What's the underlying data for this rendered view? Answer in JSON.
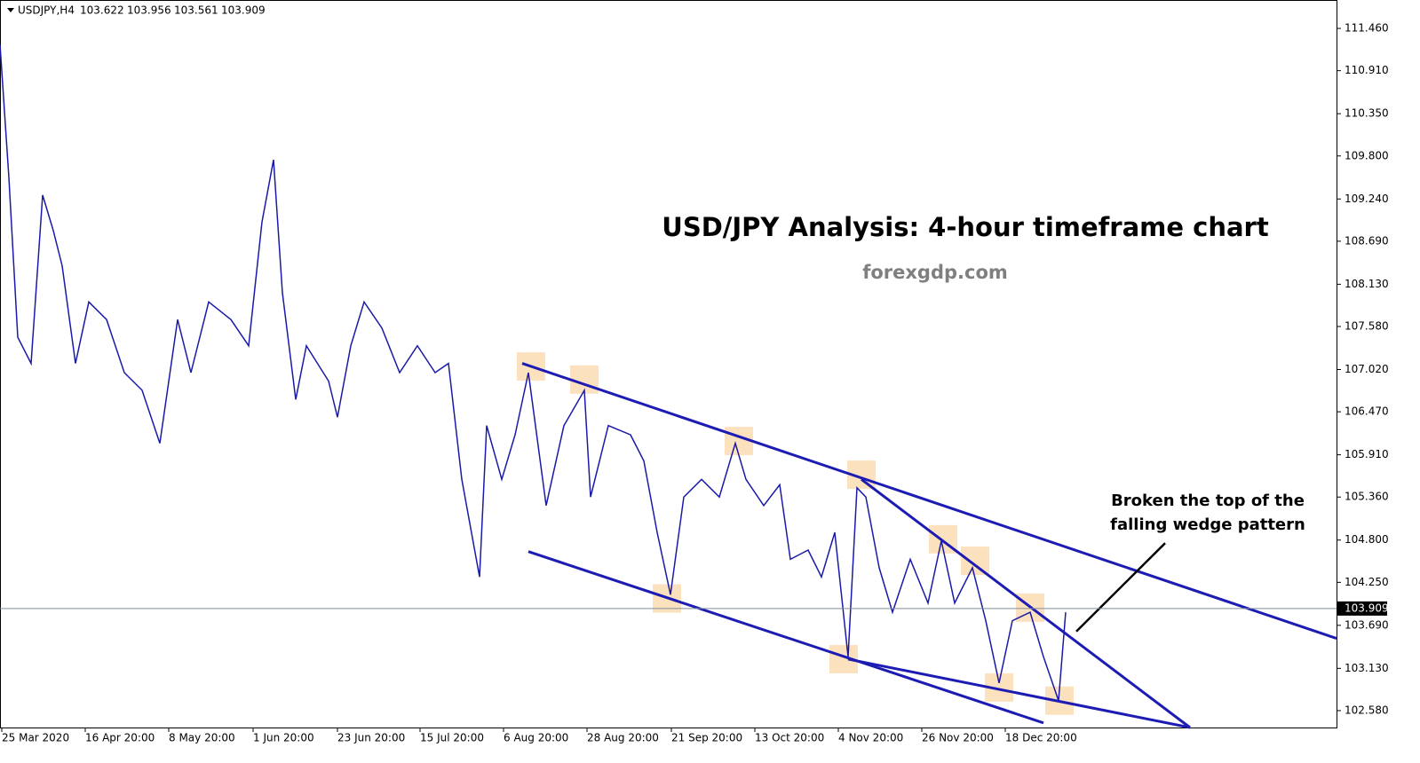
{
  "chart_data": {
    "type": "line",
    "symbol": "USDJPY,H4",
    "ohlc": [
      103.622,
      103.956,
      103.561,
      103.909
    ],
    "title": "USD/JPY Analysis: 4-hour timeframe chart",
    "subtitle": "forexgdp.com",
    "annotation": [
      "Broken the top of the",
      "falling wedge pattern"
    ],
    "xlim": [
      0,
      1505
    ],
    "ylim": [
      102.36,
      111.83
    ],
    "xticks": [
      {
        "value": 2,
        "label": "25 Mar 2020"
      },
      {
        "value": 96,
        "label": "16 Apr 20:00"
      },
      {
        "value": 190,
        "label": "8 May 20:00"
      },
      {
        "value": 285,
        "label": "1 Jun 20:00"
      },
      {
        "value": 380,
        "label": "23 Jun 20:00"
      },
      {
        "value": 473,
        "label": "15 Jul 20:00"
      },
      {
        "value": 567,
        "label": "6 Aug 20:00"
      },
      {
        "value": 661,
        "label": "28 Aug 20:00"
      },
      {
        "value": 756,
        "label": "21 Sep 20:00"
      },
      {
        "value": 850,
        "label": "13 Oct 20:00"
      },
      {
        "value": 944,
        "label": "4 Nov 20:00"
      },
      {
        "value": 1038,
        "label": "26 Nov 20:00"
      },
      {
        "value": 1132,
        "label": "18 Dec 20:00"
      }
    ],
    "yticks": [
      {
        "value": 111.46,
        "label": "111.460"
      },
      {
        "value": 110.91,
        "label": "110.910"
      },
      {
        "value": 110.35,
        "label": "110.350"
      },
      {
        "value": 109.8,
        "label": "109.800"
      },
      {
        "value": 109.24,
        "label": "109.240"
      },
      {
        "value": 108.69,
        "label": "108.690"
      },
      {
        "value": 108.13,
        "label": "108.130"
      },
      {
        "value": 107.58,
        "label": "107.580"
      },
      {
        "value": 107.02,
        "label": "107.020"
      },
      {
        "value": 106.47,
        "label": "106.470"
      },
      {
        "value": 105.91,
        "label": "105.910"
      },
      {
        "value": 105.36,
        "label": "105.360"
      },
      {
        "value": 104.8,
        "label": "104.800"
      },
      {
        "value": 104.25,
        "label": "104.250"
      },
      {
        "value": 103.69,
        "label": "103.690"
      },
      {
        "value": 103.13,
        "label": "103.130"
      },
      {
        "value": 102.58,
        "label": "102.580"
      }
    ],
    "series": [
      {
        "name": "USDJPY",
        "color": "#1a1aa8",
        "x": [
          0,
          10,
          20,
          35,
          48,
          60,
          70,
          85,
          100,
          120,
          140,
          160,
          180,
          200,
          215,
          235,
          260,
          280,
          295,
          308,
          318,
          333,
          345,
          370,
          380,
          395,
          410,
          430,
          450,
          470,
          490,
          505,
          520,
          540,
          548,
          565,
          580,
          595,
          615,
          635,
          658,
          665,
          685,
          710,
          725,
          740,
          755,
          770,
          790,
          810,
          828,
          840,
          860,
          878,
          890,
          910,
          925,
          940,
          955,
          965,
          975,
          990,
          1005,
          1025,
          1045,
          1060,
          1075,
          1095,
          1110,
          1125,
          1140,
          1160,
          1175,
          1192,
          1200
        ],
        "values": [
          111.25,
          109.52,
          107.44,
          107.1,
          109.29,
          108.83,
          108.37,
          107.1,
          107.9,
          107.67,
          106.98,
          106.75,
          106.06,
          107.67,
          106.98,
          107.9,
          107.67,
          107.33,
          108.94,
          109.75,
          108.02,
          106.63,
          107.33,
          106.87,
          106.4,
          107.33,
          107.9,
          107.56,
          106.98,
          107.33,
          106.98,
          107.1,
          105.59,
          104.32,
          106.29,
          105.59,
          106.17,
          106.98,
          105.25,
          106.29,
          106.75,
          105.36,
          106.29,
          106.17,
          105.83,
          104.9,
          104.09,
          105.36,
          105.59,
          105.36,
          106.06,
          105.59,
          105.25,
          105.52,
          104.55,
          104.67,
          104.32,
          104.9,
          103.28,
          105.48,
          105.36,
          104.44,
          103.86,
          104.55,
          103.98,
          104.79,
          103.98,
          104.44,
          103.75,
          102.94,
          103.75,
          103.86,
          103.28,
          102.71,
          103.86
        ]
      }
    ],
    "last_price": 103.909,
    "trendlines": [
      {
        "x": [
          588,
          1505
        ],
        "y": [
          107.1,
          103.52
        ]
      },
      {
        "x": [
          595,
          1175
        ],
        "y": [
          104.65,
          102.42
        ]
      },
      {
        "x": [
          955,
          1340
        ],
        "y": [
          103.25,
          102.36
        ]
      },
      {
        "x": [
          970,
          1340
        ],
        "y": [
          105.59,
          102.36
        ]
      }
    ],
    "arrow": {
      "x": [
        1212,
        1312
      ],
      "y": [
        103.61,
        104.76
      ]
    },
    "highlights": {
      "x": [
        598,
        658,
        832,
        970,
        1062,
        1098,
        1160,
        751,
        950,
        1125,
        1193
      ],
      "y": [
        107.06,
        106.89,
        106.09,
        105.65,
        104.81,
        104.53,
        103.92,
        104.04,
        103.25,
        102.88,
        102.71
      ]
    }
  }
}
